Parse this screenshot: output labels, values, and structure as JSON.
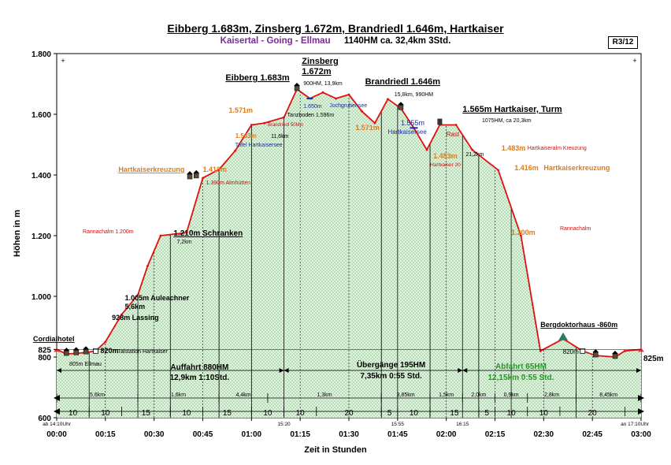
{
  "header": {
    "title": "Eibberg 1.683m, Zinsberg 1.672m, Brandriedl 1.646m, Hartkaiser",
    "route": "Kaisertal - Going  - Ellmau",
    "stats": "1140HM      ca. 32,4km    3Std.",
    "badge": "R3/12"
  },
  "chart_data": {
    "type": "area",
    "xlabel": "Zeit in Stunden",
    "ylabel": "Höhen in m",
    "ylim": [
      600,
      1800
    ],
    "xlim": [
      0,
      180
    ],
    "x_ticks": [
      "00:00",
      "00:15",
      "00:30",
      "00:45",
      "01:00",
      "01:15",
      "01:30",
      "01:45",
      "02:00",
      "02:15",
      "02:30",
      "02:45",
      "03:00"
    ],
    "y_ticks": [
      "600",
      "800",
      "825",
      "1.000",
      "1.200",
      "1.400",
      "1.600",
      "1.800"
    ],
    "series": [
      {
        "x": [
          0,
          3,
          6,
          9,
          12,
          15,
          20,
          25,
          28,
          32,
          40,
          45,
          50,
          55,
          60,
          64,
          70,
          74,
          78,
          82,
          86,
          90,
          94,
          98,
          102,
          106,
          110,
          114,
          118,
          123,
          128,
          136,
          143,
          149,
          156,
          162,
          166,
          172,
          175,
          180
        ],
        "y": [
          825,
          810,
          812,
          815,
          820,
          850,
          940,
          1005,
          1100,
          1200,
          1210,
          1390,
          1418,
          1480,
          1565,
          1571,
          1590,
          1683,
          1652,
          1672,
          1652,
          1665,
          1610,
          1571,
          1650,
          1620,
          1555,
          1483,
          1565,
          1565,
          1483,
          1416,
          1200,
          820,
          860,
          820,
          805,
          800,
          820,
          825
        ]
      }
    ],
    "top_segments": [
      {
        "label": "5,6km"
      },
      {
        "label": "1,6km"
      },
      {
        "label": "4,4km"
      },
      {
        "label": "1,3km"
      },
      {
        "label": "3,85km"
      },
      {
        "label": "1,5km"
      },
      {
        "label": "2,0km"
      },
      {
        "label": "0,9km"
      },
      {
        "label": "2,8km"
      },
      {
        "label": "8,45km"
      }
    ],
    "bottom_segments": [
      "10",
      "10",
      "15",
      "10",
      "15",
      "10",
      "10",
      "20",
      "5",
      "10",
      "15",
      "5",
      "10",
      "10",
      "20"
    ],
    "time_marks": {
      "start": "ab 14:10Uhr",
      "m1": "15:20",
      "m2": "15:55",
      "m3": "16:15",
      "end": "an 17:10Uhr"
    },
    "sections": {
      "ascent_title": "Auffahrt 880HM",
      "ascent_sub": "12,9km     1:10Std.",
      "transit_title": "Übergänge 195HM",
      "transit_sub": "7,35km     0:55  Std.",
      "descent_title": "Abfahrt 65HM",
      "descent_sub": "12,15km   0:55  Std."
    },
    "annotations": {
      "eibberg": "Eibberg  1.683m",
      "zinsberg_a": "Zinsberg",
      "zinsberg_b": "1.672m",
      "zinsberg_info": "900HM,  13,9km",
      "brandriedl": "Brandriedl 1.646m",
      "brandriedl_info": "15,8km,  990HM",
      "hartkaiser_turm": "1.565m Hartkaiser, Turm",
      "hartkaiser_info": "1075HM,  ca 20,3km",
      "schranken": "1.210m Schranken",
      "schranken_km": "7,2km",
      "auleachner": "1.005m Auleachner",
      "auleachner_km": "5,6km",
      "lassing": "928m Lassing",
      "talstation": "820m",
      "talstation_sub": "Talstation  Hartkaiser",
      "ellmau": "805m  Ellmau",
      "cordial": "Cordialhotel",
      "bergdoktor": "Bergdoktorhaus -860m",
      "end_820": "820m",
      "end_825": "825m",
      "rannach_left": "Rannachalm  1.200m",
      "rannach_right": "Rannachalm",
      "rannach_right_val": "1.200m",
      "hartkaiserkreuzung": "Hartkaiserkreuzung",
      "hk_1418": "1.418m",
      "almhuetten": "1.390m  Almhütten",
      "v1571": "1.571m",
      "v1563": "1.563m",
      "km116": "11,6km",
      "tafel": "Tafel Hartkaisersee",
      "brandriedl_50": "Brandriedl 50Min",
      "v1650": "1.650m",
      "jochgrubensee": "Jochgrubensee",
      "tanzboden": "Tanzboden  1.596m",
      "v1571b": "1.571m",
      "v1555": "1.555m",
      "hartkaisersee": "Hartkaisersee",
      "v1483": "1.483m",
      "hk20": "Hartkaiser 20",
      "rast": "Rast",
      "km212": "21,2km",
      "v1483b": "1.483m",
      "hartkaiseralm": "Hartkaiseralm  Kreuzung",
      "v1416": "1.416m",
      "hk_right": "Hartkaiserkreuzung"
    }
  }
}
